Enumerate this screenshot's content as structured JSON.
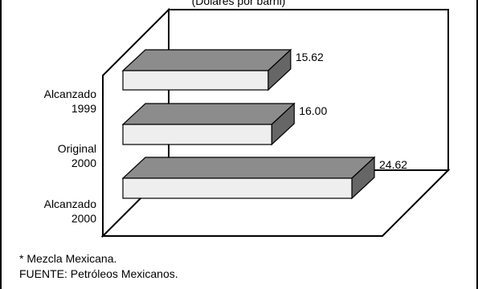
{
  "chart_data": {
    "type": "bar",
    "orientation": "horizontal",
    "style": "3d",
    "title": "(Dólares por barril)",
    "categories": [
      [
        "Alcanzado",
        "1999"
      ],
      [
        "Original",
        "2000"
      ],
      [
        "Alcanzado",
        "2000"
      ]
    ],
    "values": [
      15.62,
      16.0,
      24.62
    ],
    "value_labels": [
      "15.62",
      "16.00",
      "24.62"
    ],
    "xlim": [
      0,
      26
    ],
    "grid": false,
    "legend": "none"
  },
  "notes": {
    "footnote": "* Mezcla Mexicana.",
    "source": "FUENTE: Petróleos Mexicanos."
  },
  "colors": {
    "bar_top": "#8c8c8c",
    "bar_front": "#eeeeee",
    "bar_side": "#666666",
    "frame": "#000000",
    "background": "#ffffff"
  }
}
